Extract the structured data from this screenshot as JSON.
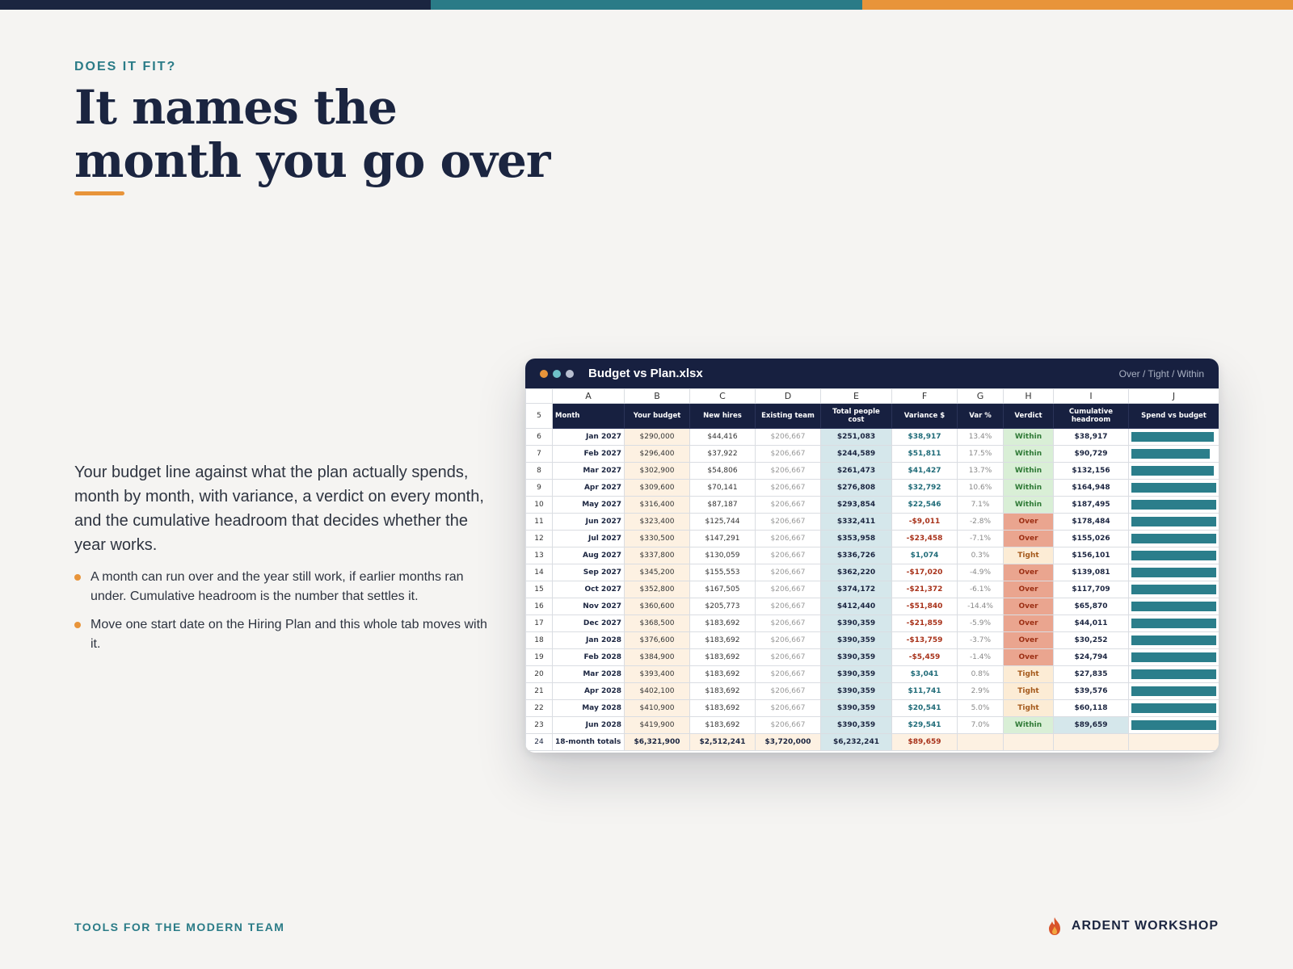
{
  "top_bar_colors": [
    "#1b2540",
    "#2a7b87",
    "#e8943a"
  ],
  "eyebrow": "DOES IT FIT?",
  "headline": "It names the month you go over",
  "body": "Your budget line against what the plan actually spends, month by month, with variance, a verdict on every month, and the cumulative headroom that decides whether the year works.",
  "bullets": [
    "A month can run over and the year still work, if earlier months ran under. Cumulative headroom is the number that settles it.",
    "Move one start date on the Hiring Plan and this whole tab moves with it."
  ],
  "window": {
    "dot_colors": [
      "#e8943a",
      "#6ec1c9",
      "#b8bfd0"
    ],
    "filename": "Budget vs Plan.xlsx",
    "legend": "Over / Tight / Within"
  },
  "verdict_colors": {
    "Within": {
      "bg": "#d9efd6",
      "fg": "#2f7a36"
    },
    "Over": {
      "bg": "#eaa58f",
      "fg": "#9c2f14"
    },
    "Tight": {
      "bg": "#fcecd5",
      "fg": "#a4581a"
    }
  },
  "sheet": {
    "column_letters": [
      "A",
      "B",
      "C",
      "D",
      "E",
      "F",
      "G",
      "H",
      "I",
      "J"
    ],
    "header_row_number": "5",
    "headers": [
      "Month",
      "Your budget",
      "New hires",
      "Existing team",
      "Total people cost",
      "Variance $",
      "Var %",
      "Verdict",
      "Cumulative headroom",
      "Spend vs budget"
    ],
    "rows": [
      {
        "n": "6",
        "month": "Jan 2027",
        "budget": "$290,000",
        "hires": "$44,416",
        "existing": "$206,667",
        "total": "$251,083",
        "variance": "$38,917",
        "var_pct": "13.4%",
        "verdict": "Within",
        "cumulative": "$38,917",
        "spend_ratio": 0.866
      },
      {
        "n": "7",
        "month": "Feb 2027",
        "budget": "$296,400",
        "hires": "$37,922",
        "existing": "$206,667",
        "total": "$244,589",
        "variance": "$51,811",
        "var_pct": "17.5%",
        "verdict": "Within",
        "cumulative": "$90,729",
        "spend_ratio": 0.825
      },
      {
        "n": "8",
        "month": "Mar 2027",
        "budget": "$302,900",
        "hires": "$54,806",
        "existing": "$206,667",
        "total": "$261,473",
        "variance": "$41,427",
        "var_pct": "13.7%",
        "verdict": "Within",
        "cumulative": "$132,156",
        "spend_ratio": 0.863
      },
      {
        "n": "9",
        "month": "Apr 2027",
        "budget": "$309,600",
        "hires": "$70,141",
        "existing": "$206,667",
        "total": "$276,808",
        "variance": "$32,792",
        "var_pct": "10.6%",
        "verdict": "Within",
        "cumulative": "$164,948",
        "spend_ratio": 0.894
      },
      {
        "n": "10",
        "month": "May 2027",
        "budget": "$316,400",
        "hires": "$87,187",
        "existing": "$206,667",
        "total": "$293,854",
        "variance": "$22,546",
        "var_pct": "7.1%",
        "verdict": "Within",
        "cumulative": "$187,495",
        "spend_ratio": 0.929
      },
      {
        "n": "11",
        "month": "Jun 2027",
        "budget": "$323,400",
        "hires": "$125,744",
        "existing": "$206,667",
        "total": "$332,411",
        "variance": "-$9,011",
        "var_pct": "-2.8%",
        "verdict": "Over",
        "cumulative": "$178,484",
        "spend_ratio": 1.028
      },
      {
        "n": "12",
        "month": "Jul 2027",
        "budget": "$330,500",
        "hires": "$147,291",
        "existing": "$206,667",
        "total": "$353,958",
        "variance": "-$23,458",
        "var_pct": "-7.1%",
        "verdict": "Over",
        "cumulative": "$155,026",
        "spend_ratio": 1.071
      },
      {
        "n": "13",
        "month": "Aug 2027",
        "budget": "$337,800",
        "hires": "$130,059",
        "existing": "$206,667",
        "total": "$336,726",
        "variance": "$1,074",
        "var_pct": "0.3%",
        "verdict": "Tight",
        "cumulative": "$156,101",
        "spend_ratio": 0.997
      },
      {
        "n": "14",
        "month": "Sep 2027",
        "budget": "$345,200",
        "hires": "$155,553",
        "existing": "$206,667",
        "total": "$362,220",
        "variance": "-$17,020",
        "var_pct": "-4.9%",
        "verdict": "Over",
        "cumulative": "$139,081",
        "spend_ratio": 1.049
      },
      {
        "n": "15",
        "month": "Oct 2027",
        "budget": "$352,800",
        "hires": "$167,505",
        "existing": "$206,667",
        "total": "$374,172",
        "variance": "-$21,372",
        "var_pct": "-6.1%",
        "verdict": "Over",
        "cumulative": "$117,709",
        "spend_ratio": 1.061
      },
      {
        "n": "16",
        "month": "Nov 2027",
        "budget": "$360,600",
        "hires": "$205,773",
        "existing": "$206,667",
        "total": "$412,440",
        "variance": "-$51,840",
        "var_pct": "-14.4%",
        "verdict": "Over",
        "cumulative": "$65,870",
        "spend_ratio": 1.144
      },
      {
        "n": "17",
        "month": "Dec 2027",
        "budget": "$368,500",
        "hires": "$183,692",
        "existing": "$206,667",
        "total": "$390,359",
        "variance": "-$21,859",
        "var_pct": "-5.9%",
        "verdict": "Over",
        "cumulative": "$44,011",
        "spend_ratio": 1.059
      },
      {
        "n": "18",
        "month": "Jan 2028",
        "budget": "$376,600",
        "hires": "$183,692",
        "existing": "$206,667",
        "total": "$390,359",
        "variance": "-$13,759",
        "var_pct": "-3.7%",
        "verdict": "Over",
        "cumulative": "$30,252",
        "spend_ratio": 1.037
      },
      {
        "n": "19",
        "month": "Feb 2028",
        "budget": "$384,900",
        "hires": "$183,692",
        "existing": "$206,667",
        "total": "$390,359",
        "variance": "-$5,459",
        "var_pct": "-1.4%",
        "verdict": "Over",
        "cumulative": "$24,794",
        "spend_ratio": 1.014
      },
      {
        "n": "20",
        "month": "Mar 2028",
        "budget": "$393,400",
        "hires": "$183,692",
        "existing": "$206,667",
        "total": "$390,359",
        "variance": "$3,041",
        "var_pct": "0.8%",
        "verdict": "Tight",
        "cumulative": "$27,835",
        "spend_ratio": 0.992
      },
      {
        "n": "21",
        "month": "Apr 2028",
        "budget": "$402,100",
        "hires": "$183,692",
        "existing": "$206,667",
        "total": "$390,359",
        "variance": "$11,741",
        "var_pct": "2.9%",
        "verdict": "Tight",
        "cumulative": "$39,576",
        "spend_ratio": 0.971
      },
      {
        "n": "22",
        "month": "May 2028",
        "budget": "$410,900",
        "hires": "$183,692",
        "existing": "$206,667",
        "total": "$390,359",
        "variance": "$20,541",
        "var_pct": "5.0%",
        "verdict": "Tight",
        "cumulative": "$60,118",
        "spend_ratio": 0.95
      },
      {
        "n": "23",
        "month": "Jun 2028",
        "budget": "$419,900",
        "hires": "$183,692",
        "existing": "$206,667",
        "total": "$390,359",
        "variance": "$29,541",
        "var_pct": "7.0%",
        "verdict": "Within",
        "cumulative": "$89,659",
        "spend_ratio": 0.93
      }
    ],
    "totals": {
      "n": "24",
      "label": "18-month totals →",
      "budget": "$6,321,900",
      "hires": "$2,512,241",
      "existing": "$3,720,000",
      "total": "$6,232,241",
      "variance": "$89,659"
    }
  },
  "footer_left": "TOOLS FOR THE MODERN TEAM",
  "brand": "ARDENT WORKSHOP",
  "brand_icon": "flame-icon"
}
